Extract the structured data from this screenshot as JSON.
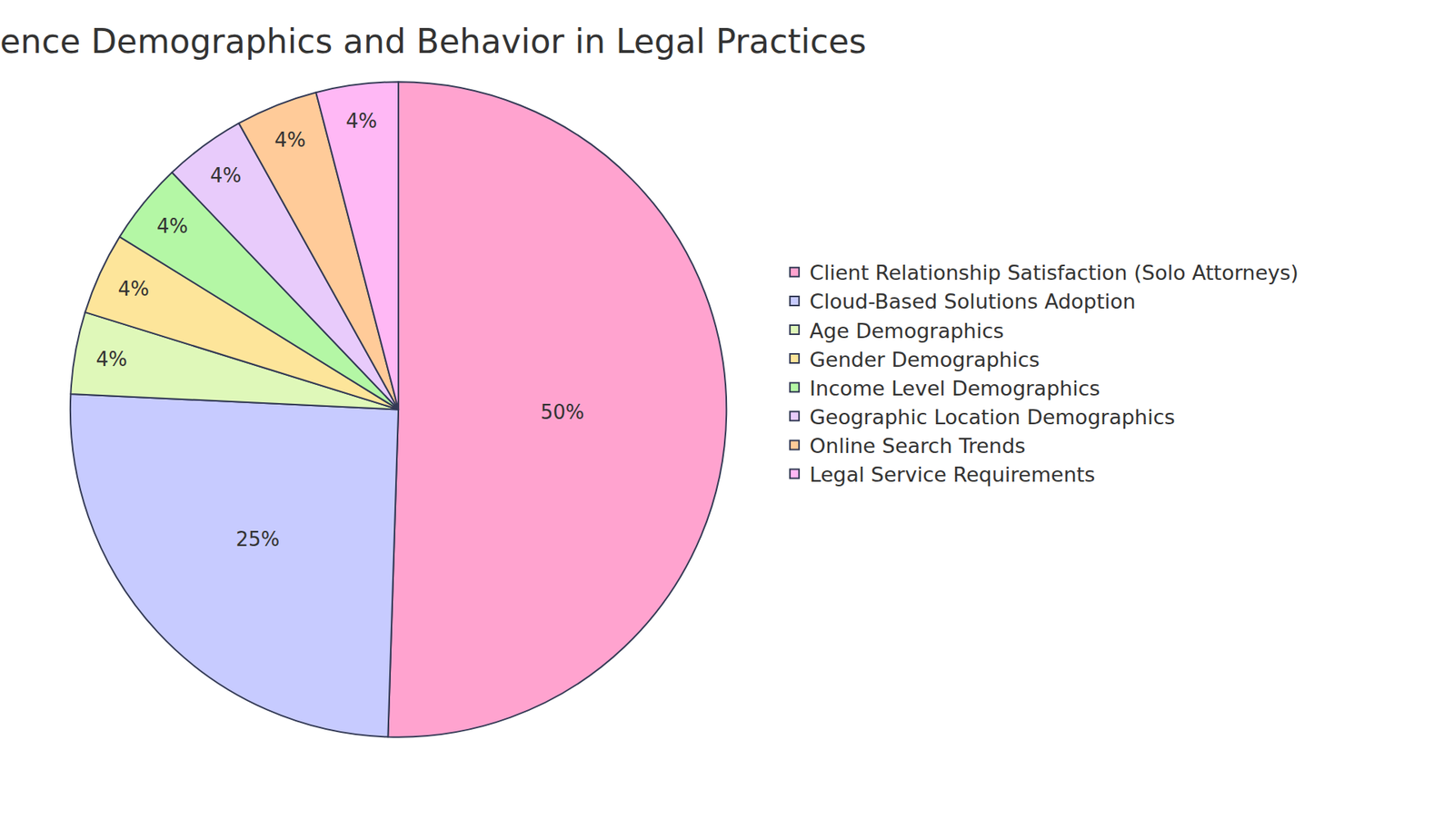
{
  "chart_data": {
    "type": "pie",
    "title": "ence Demographics and Behavior in Legal Practices",
    "categories": [
      "Client Relationship Satisfaction (Solo Attorneys)",
      "Cloud-Based Solutions Adoption",
      "Age Demographics",
      "Gender Demographics",
      "Income Level Demographics",
      "Geographic Location Demographics",
      "Online Search Trends",
      "Legal Service Requirements"
    ],
    "values": [
      50,
      25,
      4,
      4,
      4,
      4,
      4,
      4
    ],
    "value_labels": [
      "50%",
      "25%",
      "4%",
      "4%",
      "4%",
      "4%",
      "4%",
      "4%"
    ],
    "data_labels": true,
    "colors": [
      "#ffa3cf",
      "#c7cbff",
      "#dff8b9",
      "#fde59a",
      "#b4f7a5",
      "#e8cbfb",
      "#ffcb99",
      "#ffb8f5"
    ],
    "legend": "right"
  }
}
